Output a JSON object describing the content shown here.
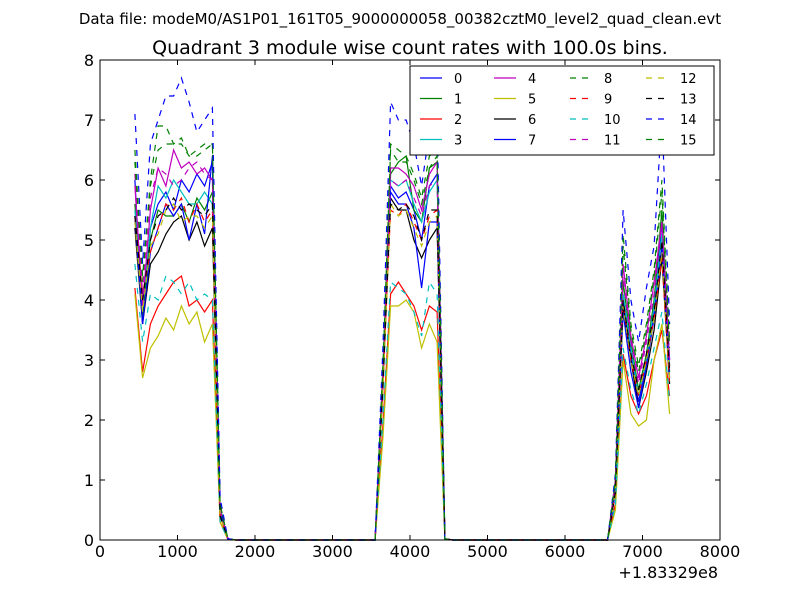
{
  "suptitle": "Data file: modeM0/AS1P01_161T05_9000000058_00382cztM0_level2_quad_clean.evt",
  "chart_data": {
    "type": "line",
    "title": "Quadrant 3 module wise count rates with 100.0s bins.",
    "xlabel": "",
    "ylabel": "",
    "x_offset_label": "+1.83329e8",
    "xlim": [
      0,
      8000
    ],
    "ylim": [
      0,
      8
    ],
    "xticks": [
      "0",
      "1000",
      "2000",
      "3000",
      "4000",
      "5000",
      "6000",
      "7000",
      "8000"
    ],
    "yticks": [
      "0",
      "1",
      "2",
      "3",
      "4",
      "5",
      "6",
      "7",
      "8"
    ],
    "grid": false,
    "legend_position": "top-right",
    "x": [
      450,
      550,
      650,
      750,
      850,
      950,
      1050,
      1150,
      1250,
      1350,
      1450,
      1550,
      1650,
      1750,
      1850,
      1950,
      2050,
      2150,
      2250,
      2350,
      2450,
      2550,
      2650,
      2750,
      2850,
      2950,
      3050,
      3150,
      3250,
      3350,
      3450,
      3550,
      3650,
      3750,
      3850,
      3950,
      4050,
      4150,
      4250,
      4350,
      4450,
      4550,
      4650,
      4750,
      4850,
      4950,
      5050,
      5150,
      5250,
      5350,
      5450,
      5550,
      5650,
      5750,
      5850,
      5950,
      6050,
      6150,
      6250,
      6350,
      6450,
      6550,
      6650,
      6750,
      6850,
      6950,
      7050,
      7150,
      7250,
      7350
    ],
    "series": [
      {
        "name": "0",
        "color": "#0000ff",
        "dash": "solid",
        "values": [
          6.0,
          3.6,
          5.2,
          5.6,
          5.8,
          5.5,
          6.0,
          5.8,
          6.1,
          5.9,
          6.3,
          0.5,
          0.02,
          0,
          0,
          0,
          0,
          0,
          0,
          0,
          0,
          0,
          0,
          0,
          0,
          0,
          0,
          0,
          0,
          0,
          0,
          0,
          2.7,
          5.9,
          5.7,
          5.8,
          5.5,
          5.0,
          5.9,
          6.1,
          0.02,
          0,
          0,
          0,
          0,
          0,
          0,
          0,
          0,
          0,
          0,
          0,
          0,
          0,
          0,
          0,
          0,
          0,
          0,
          0,
          0,
          0,
          0.9,
          4.0,
          3.1,
          2.3,
          3.0,
          3.8,
          5.3,
          3.0
        ]
      },
      {
        "name": "1",
        "color": "#008000",
        "dash": "solid",
        "values": [
          5.6,
          3.7,
          5.0,
          5.5,
          5.4,
          5.4,
          5.6,
          5.3,
          5.7,
          5.5,
          5.8,
          0.5,
          0.02,
          0,
          0,
          0,
          0,
          0,
          0,
          0,
          0,
          0,
          0,
          0,
          0,
          0,
          0,
          0,
          0,
          0,
          0,
          0,
          2.7,
          6.1,
          6.3,
          6.4,
          5.5,
          5.3,
          6.2,
          6.3,
          0.02,
          0,
          0,
          0,
          0,
          0,
          0,
          0,
          0,
          0,
          0,
          0,
          0,
          0,
          0,
          0,
          0,
          0,
          0,
          0,
          0,
          0,
          0.9,
          4.3,
          3.3,
          2.5,
          3.1,
          4.0,
          5.5,
          2.8
        ]
      },
      {
        "name": "2",
        "color": "#ff0000",
        "dash": "solid",
        "values": [
          4.2,
          2.8,
          3.6,
          3.9,
          4.1,
          4.3,
          4.4,
          3.9,
          4.0,
          3.8,
          4.0,
          0.3,
          0.01,
          0,
          0,
          0,
          0,
          0,
          0,
          0,
          0,
          0,
          0,
          0,
          0,
          0,
          0,
          0,
          0,
          0,
          0,
          0,
          1.9,
          4.1,
          4.3,
          4.1,
          3.9,
          3.5,
          3.9,
          3.8,
          0.01,
          0,
          0,
          0,
          0,
          0,
          0,
          0,
          0,
          0,
          0,
          0,
          0,
          0,
          0,
          0,
          0,
          0,
          0,
          0,
          0,
          0,
          0.6,
          3.1,
          2.4,
          2.1,
          2.4,
          3.0,
          3.5,
          2.4
        ]
      },
      {
        "name": "3",
        "color": "#00bfbf",
        "dash": "solid",
        "values": [
          5.5,
          3.9,
          5.2,
          5.9,
          5.7,
          6.0,
          5.8,
          5.6,
          5.6,
          5.8,
          5.6,
          0.5,
          0.02,
          0,
          0,
          0,
          0,
          0,
          0,
          0,
          0,
          0,
          0,
          0,
          0,
          0,
          0,
          0,
          0,
          0,
          0,
          0,
          2.7,
          6.0,
          5.9,
          6.0,
          5.6,
          5.3,
          5.8,
          6.0,
          0.02,
          0,
          0,
          0,
          0,
          0,
          0,
          0,
          0,
          0,
          0,
          0,
          0,
          0,
          0,
          0,
          0,
          0,
          0,
          0,
          0,
          0,
          0.9,
          4.1,
          3.2,
          2.4,
          3.0,
          3.9,
          5.1,
          2.9
        ]
      },
      {
        "name": "4",
        "color": "#bf00bf",
        "dash": "solid",
        "values": [
          5.9,
          3.9,
          5.5,
          6.2,
          5.9,
          6.5,
          6.2,
          6.3,
          6.1,
          6.2,
          6.0,
          0.5,
          0.02,
          0,
          0,
          0,
          0,
          0,
          0,
          0,
          0,
          0,
          0,
          0,
          0,
          0,
          0,
          0,
          0,
          0,
          0,
          0,
          2.8,
          6.2,
          6.2,
          6.1,
          5.9,
          5.5,
          6.1,
          6.3,
          0.02,
          0,
          0,
          0,
          0,
          0,
          0,
          0,
          0,
          0,
          0,
          0,
          0,
          0,
          0,
          0,
          0,
          0,
          0,
          0,
          0,
          0,
          1.0,
          4.6,
          3.4,
          2.7,
          3.4,
          4.3,
          5.3,
          3.0
        ]
      },
      {
        "name": "5",
        "color": "#bfbf00",
        "dash": "solid",
        "values": [
          4.1,
          2.7,
          3.2,
          3.4,
          3.7,
          3.5,
          3.9,
          3.6,
          3.8,
          3.3,
          3.6,
          0.3,
          0.01,
          0,
          0,
          0,
          0,
          0,
          0,
          0,
          0,
          0,
          0,
          0,
          0,
          0,
          0,
          0,
          0,
          0,
          0,
          0,
          1.7,
          3.9,
          3.9,
          4.0,
          3.8,
          3.2,
          3.6,
          3.3,
          0.01,
          0,
          0,
          0,
          0,
          0,
          0,
          0,
          0,
          0,
          0,
          0,
          0,
          0,
          0,
          0,
          0,
          0,
          0,
          0,
          0,
          0,
          0.5,
          3.0,
          2.1,
          1.9,
          2.0,
          3.0,
          3.6,
          2.1
        ]
      },
      {
        "name": "6",
        "color": "#000000",
        "dash": "solid",
        "values": [
          5.2,
          3.6,
          4.6,
          4.8,
          5.1,
          5.3,
          5.4,
          5.0,
          5.3,
          4.9,
          5.2,
          0.4,
          0.02,
          0,
          0,
          0,
          0,
          0,
          0,
          0,
          0,
          0,
          0,
          0,
          0,
          0,
          0,
          0,
          0,
          0,
          0,
          0,
          2.5,
          5.7,
          5.5,
          5.5,
          5.0,
          4.7,
          5.0,
          5.2,
          0.02,
          0,
          0,
          0,
          0,
          0,
          0,
          0,
          0,
          0,
          0,
          0,
          0,
          0,
          0,
          0,
          0,
          0,
          0,
          0,
          0,
          0,
          0.8,
          3.9,
          3.0,
          2.2,
          2.8,
          3.5,
          4.7,
          2.6
        ]
      },
      {
        "name": "7",
        "color": "#0000ff",
        "dash": "solid",
        "values": [
          5.4,
          3.6,
          4.8,
          5.2,
          5.6,
          5.4,
          5.6,
          5.0,
          5.6,
          5.1,
          6.4,
          0.5,
          0.02,
          0,
          0,
          0,
          0,
          0,
          0,
          0,
          0,
          0,
          0,
          0,
          0,
          0,
          0,
          0,
          0,
          0,
          0,
          0,
          2.6,
          5.8,
          5.6,
          5.6,
          5.2,
          4.2,
          5.3,
          5.3,
          0.02,
          0,
          0,
          0,
          0,
          0,
          0,
          0,
          0,
          0,
          0,
          0,
          0,
          0,
          0,
          0,
          0,
          0,
          0,
          0,
          0,
          0,
          0.8,
          3.8,
          2.8,
          2.2,
          2.9,
          3.7,
          4.9,
          2.7
        ]
      },
      {
        "name": "8",
        "color": "#008000",
        "dash": "dashed",
        "values": [
          6.5,
          4.3,
          6.0,
          6.9,
          6.9,
          6.6,
          6.7,
          6.4,
          6.5,
          6.6,
          6.6,
          0.6,
          0.02,
          0,
          0,
          0,
          0,
          0,
          0,
          0,
          0,
          0,
          0,
          0,
          0,
          0,
          0,
          0,
          0,
          0,
          0,
          0,
          3.0,
          6.6,
          6.5,
          6.4,
          6.1,
          5.7,
          6.4,
          6.5,
          0.02,
          0,
          0,
          0,
          0,
          0,
          0,
          0,
          0,
          0,
          0,
          0,
          0,
          0,
          0,
          0,
          0,
          0,
          0,
          0,
          0,
          0,
          1.0,
          5.1,
          3.6,
          2.9,
          3.6,
          4.5,
          6.0,
          3.3
        ]
      },
      {
        "name": "9",
        "color": "#ff0000",
        "dash": "dashed",
        "values": [
          5.4,
          4.1,
          4.8,
          5.2,
          5.6,
          5.5,
          5.7,
          5.3,
          5.6,
          5.3,
          5.5,
          0.4,
          0.02,
          0,
          0,
          0,
          0,
          0,
          0,
          0,
          0,
          0,
          0,
          0,
          0,
          0,
          0,
          0,
          0,
          0,
          0,
          0,
          2.6,
          5.5,
          5.4,
          5.6,
          5.3,
          5.0,
          5.4,
          5.5,
          0.02,
          0,
          0,
          0,
          0,
          0,
          0,
          0,
          0,
          0,
          0,
          0,
          0,
          0,
          0,
          0,
          0,
          0,
          0,
          0,
          0,
          0,
          0.8,
          4.0,
          3.0,
          2.4,
          3.0,
          3.7,
          4.7,
          2.6
        ]
      },
      {
        "name": "10",
        "color": "#00bfbf",
        "dash": "dashed",
        "values": [
          4.6,
          3.3,
          4.1,
          4.0,
          4.4,
          4.3,
          4.1,
          4.3,
          4.0,
          4.1,
          4.0,
          0.3,
          0.01,
          0,
          0,
          0,
          0,
          0,
          0,
          0,
          0,
          0,
          0,
          0,
          0,
          0,
          0,
          0,
          0,
          0,
          0,
          0,
          2.0,
          4.3,
          4.2,
          4.1,
          3.8,
          3.4,
          4.3,
          4.1,
          0.01,
          0,
          0,
          0,
          0,
          0,
          0,
          0,
          0,
          0,
          0,
          0,
          0,
          0,
          0,
          0,
          0,
          0,
          0,
          0,
          0,
          0,
          0.6,
          3.2,
          2.5,
          2.1,
          2.6,
          3.2,
          3.8,
          2.3
        ]
      },
      {
        "name": "11",
        "color": "#bf00bf",
        "dash": "dashed",
        "values": [
          6.1,
          4.1,
          5.7,
          6.2,
          6.1,
          5.9,
          6.0,
          6.2,
          6.3,
          6.1,
          6.0,
          0.5,
          0.02,
          0,
          0,
          0,
          0,
          0,
          0,
          0,
          0,
          0,
          0,
          0,
          0,
          0,
          0,
          0,
          0,
          0,
          0,
          0,
          2.8,
          6.0,
          5.9,
          6.0,
          5.7,
          5.4,
          5.9,
          6.0,
          0.02,
          0,
          0,
          0,
          0,
          0,
          0,
          0,
          0,
          0,
          0,
          0,
          0,
          0,
          0,
          0,
          0,
          0,
          0,
          0,
          0,
          0,
          0.9,
          4.4,
          3.3,
          2.6,
          3.3,
          4.1,
          5.3,
          2.9
        ]
      },
      {
        "name": "12",
        "color": "#bfbf00",
        "dash": "dashed",
        "values": [
          5.3,
          3.8,
          4.9,
          5.1,
          5.5,
          5.6,
          5.3,
          5.4,
          5.4,
          5.2,
          5.4,
          0.4,
          0.02,
          0,
          0,
          0,
          0,
          0,
          0,
          0,
          0,
          0,
          0,
          0,
          0,
          0,
          0,
          0,
          0,
          0,
          0,
          0,
          2.5,
          5.6,
          5.4,
          5.5,
          5.2,
          4.9,
          5.3,
          5.4,
          0.02,
          0,
          0,
          0,
          0,
          0,
          0,
          0,
          0,
          0,
          0,
          0,
          0,
          0,
          0,
          0,
          0,
          0,
          0,
          0,
          0,
          0,
          0.8,
          3.9,
          3.0,
          2.4,
          3.0,
          3.7,
          4.8,
          2.7
        ]
      },
      {
        "name": "13",
        "color": "#000000",
        "dash": "dashed",
        "values": [
          5.4,
          4.0,
          5.0,
          5.4,
          5.5,
          5.7,
          5.5,
          5.6,
          5.5,
          5.4,
          5.6,
          0.4,
          0.02,
          0,
          0,
          0,
          0,
          0,
          0,
          0,
          0,
          0,
          0,
          0,
          0,
          0,
          0,
          0,
          0,
          0,
          0,
          0,
          2.6,
          5.6,
          5.5,
          5.6,
          5.4,
          5.0,
          5.5,
          5.5,
          0.02,
          0,
          0,
          0,
          0,
          0,
          0,
          0,
          0,
          0,
          0,
          0,
          0,
          0,
          0,
          0,
          0,
          0,
          0,
          0,
          0,
          0,
          0.8,
          4.0,
          3.1,
          2.5,
          3.1,
          3.8,
          5.0,
          2.8
        ]
      },
      {
        "name": "14",
        "color": "#0000ff",
        "dash": "dashed",
        "values": [
          7.1,
          4.6,
          6.6,
          7.0,
          7.4,
          7.4,
          7.7,
          7.3,
          6.8,
          7.0,
          7.2,
          0.7,
          0.02,
          0,
          0,
          0,
          0,
          0,
          0,
          0,
          0,
          0,
          0,
          0,
          0,
          0,
          0,
          0,
          0,
          0,
          0,
          0,
          3.2,
          7.3,
          7.0,
          7.0,
          6.6,
          5.9,
          6.8,
          7.1,
          0.02,
          0,
          0,
          0,
          0,
          0,
          0,
          0,
          0,
          0,
          0,
          0,
          0,
          0,
          0,
          0,
          0,
          0,
          0,
          0,
          0,
          0,
          1.1,
          5.5,
          4.0,
          3.3,
          4.2,
          4.9,
          7.1,
          3.6
        ]
      },
      {
        "name": "15",
        "color": "#008000",
        "dash": "dashed",
        "values": [
          6.3,
          4.4,
          5.9,
          6.5,
          6.6,
          6.6,
          6.6,
          6.4,
          6.4,
          6.5,
          6.6,
          0.6,
          0.02,
          0,
          0,
          0,
          0,
          0,
          0,
          0,
          0,
          0,
          0,
          0,
          0,
          0,
          0,
          0,
          0,
          0,
          0,
          0,
          2.9,
          6.5,
          6.3,
          6.3,
          6.0,
          5.6,
          6.2,
          6.4,
          0.02,
          0,
          0,
          0,
          0,
          0,
          0,
          0,
          0,
          0,
          0,
          0,
          0,
          0,
          0,
          0,
          0,
          0,
          0,
          0,
          0,
          0,
          1.0,
          4.9,
          3.5,
          2.8,
          3.5,
          4.4,
          5.8,
          3.2
        ]
      }
    ]
  }
}
